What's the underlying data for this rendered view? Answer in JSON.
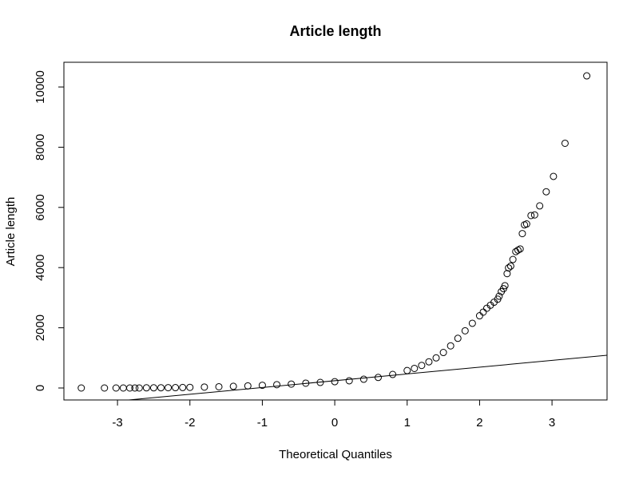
{
  "chart_data": {
    "type": "scatter",
    "title": "Article length",
    "x_label": "Theoretical Quantiles",
    "y_label": "Article length",
    "x": [
      -3.5,
      -3.18,
      -3.02,
      -2.92,
      -2.83,
      -2.76,
      -2.7,
      -2.6,
      -2.5,
      -2.4,
      -2.3,
      -2.2,
      -2.1,
      -2.0,
      -1.8,
      -1.6,
      -1.4,
      -1.2,
      -1.0,
      -0.8,
      -0.6,
      -0.4,
      -0.2,
      0,
      0.2,
      0.4,
      0.6,
      0.8,
      1.0,
      1.1,
      1.2,
      1.3,
      1.4,
      1.5,
      1.6,
      1.7,
      1.8,
      1.9,
      2.0,
      2.05,
      2.1,
      2.15,
      2.2,
      2.25,
      2.27,
      2.3,
      2.33,
      2.35,
      2.38,
      2.4,
      2.43,
      2.46,
      2.5,
      2.53,
      2.56,
      2.59,
      2.62,
      2.65,
      2.71,
      2.76,
      2.83,
      2.92,
      3.02,
      3.18,
      3.48
    ],
    "values": [
      0,
      0,
      0,
      0,
      0,
      0,
      0,
      5,
      5,
      8,
      10,
      12,
      15,
      20,
      30,
      40,
      55,
      70,
      90,
      110,
      130,
      160,
      185,
      210,
      240,
      290,
      350,
      450,
      580,
      650,
      750,
      870,
      1000,
      1180,
      1400,
      1650,
      1900,
      2150,
      2400,
      2520,
      2650,
      2750,
      2850,
      2950,
      3050,
      3200,
      3300,
      3400,
      3800,
      3990,
      4050,
      4270,
      4530,
      4580,
      4620,
      5130,
      5420,
      5450,
      5730,
      5750,
      6050,
      6520,
      7030,
      8130,
      10370
    ],
    "color": "#000000",
    "reference_line": {
      "intercept": 242,
      "slope": 225
    },
    "xlim": [
      -3.74,
      3.76
    ],
    "ylim": [
      -398,
      10822
    ],
    "xticks": [
      -3,
      -2,
      -1,
      0,
      1,
      2,
      3
    ],
    "yticks": [
      0,
      2000,
      4000,
      6000,
      8000,
      10000
    ]
  }
}
